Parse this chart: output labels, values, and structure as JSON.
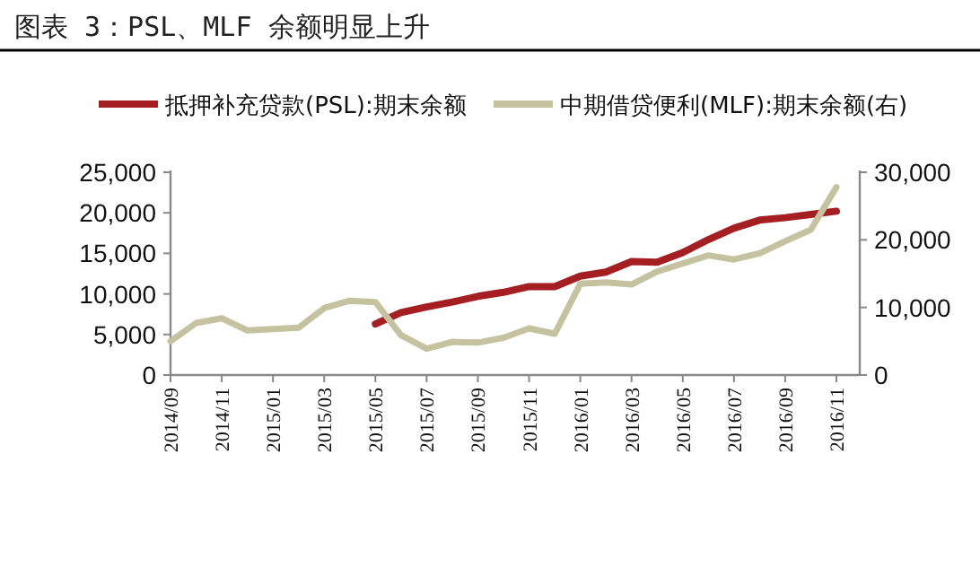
{
  "chart_data": {
    "type": "line",
    "title": "图表 3：PSL、MLF 余额明显上升",
    "categories": [
      "2014/09",
      null,
      "2014/11",
      null,
      "2015/01",
      null,
      "2015/03",
      null,
      "2015/05",
      null,
      "2015/07",
      null,
      "2015/09",
      null,
      "2015/11",
      null,
      "2016/01",
      null,
      "2016/03",
      null,
      "2016/05",
      null,
      "2016/07",
      null,
      "2016/09",
      null,
      "2016/11"
    ],
    "series": [
      {
        "name": "抵押补充贷款(PSL):期末余额",
        "color": "#a41e22",
        "values": [
          null,
          null,
          null,
          null,
          null,
          null,
          null,
          null,
          6300,
          7700,
          8400,
          9000,
          9700,
          10200,
          10900,
          10900,
          12200,
          12700,
          14000,
          13900,
          15100,
          16700,
          18100,
          19100,
          19400,
          19800,
          20200
        ]
      },
      {
        "name": "中期借贷便利(MLF):期末余额(右)",
        "color": "#c5c2a0",
        "axis": "y2",
        "values": [
          5000,
          7700,
          8400,
          6600,
          6800,
          7000,
          9900,
          11000,
          10800,
          5900,
          3900,
          4900,
          4800,
          5500,
          6900,
          6100,
          13500,
          13700,
          13400,
          15300,
          16500,
          17700,
          17100,
          18000,
          19800,
          21500,
          27800
        ]
      }
    ],
    "ylim": [
      0,
      25000
    ],
    "yticks": [
      {
        "value": 0,
        "label": "0"
      },
      {
        "value": 5000,
        "label": "5,000"
      },
      {
        "value": 10000,
        "label": "10,000"
      },
      {
        "value": 15000,
        "label": "15,000"
      },
      {
        "value": 20000,
        "label": "20,000"
      },
      {
        "value": 25000,
        "label": "25,000"
      }
    ],
    "y2lim": [
      0,
      30000
    ],
    "y2ticks": [
      {
        "value": 0,
        "label": "0"
      },
      {
        "value": 10000,
        "label": "10,000"
      },
      {
        "value": 20000,
        "label": "20,000"
      },
      {
        "value": 30000,
        "label": "30,000"
      }
    ],
    "grid": false,
    "legend": "top",
    "line_style": "solid",
    "marker": "none"
  }
}
